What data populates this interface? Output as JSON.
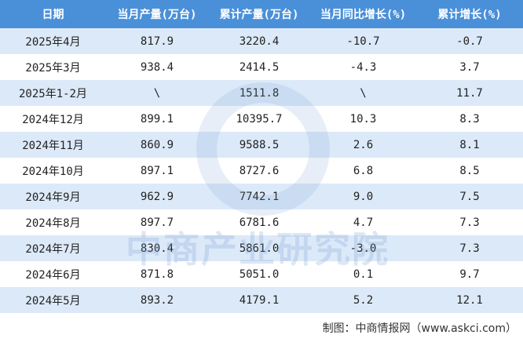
{
  "table": {
    "header": [
      "日期",
      "当月产量(万台)",
      "累计产量(万台)",
      "当月同比增长(%)",
      "累计增长(%)"
    ],
    "rows": [
      [
        "2025年4月",
        "817.9",
        "3220.4",
        "-10.7",
        "-0.7"
      ],
      [
        "2025年3月",
        "938.4",
        "2414.5",
        "-4.3",
        "3.7"
      ],
      [
        "2025年1-2月",
        "\\",
        "1511.8",
        "\\",
        "11.7"
      ],
      [
        "2024年12月",
        "899.1",
        "10395.7",
        "10.3",
        "8.3"
      ],
      [
        "2024年11月",
        "860.9",
        "9588.5",
        "2.6",
        "8.1"
      ],
      [
        "2024年10月",
        "897.1",
        "8727.6",
        "6.8",
        "8.5"
      ],
      [
        "2024年9月",
        "962.9",
        "7742.1",
        "9.0",
        "7.5"
      ],
      [
        "2024年8月",
        "897.7",
        "6781.6",
        "4.7",
        "7.3"
      ],
      [
        "2024年7月",
        "830.4",
        "5861.0",
        "-3.0",
        "7.3"
      ],
      [
        "2024年6月",
        "871.8",
        "5051.0",
        "0.1",
        "9.7"
      ],
      [
        "2024年5月",
        "893.2",
        "4179.1",
        "5.2",
        "12.1"
      ]
    ]
  },
  "watermark": "中商产业研究院",
  "footer": "制图：中商情报网（www.askci.com）"
}
